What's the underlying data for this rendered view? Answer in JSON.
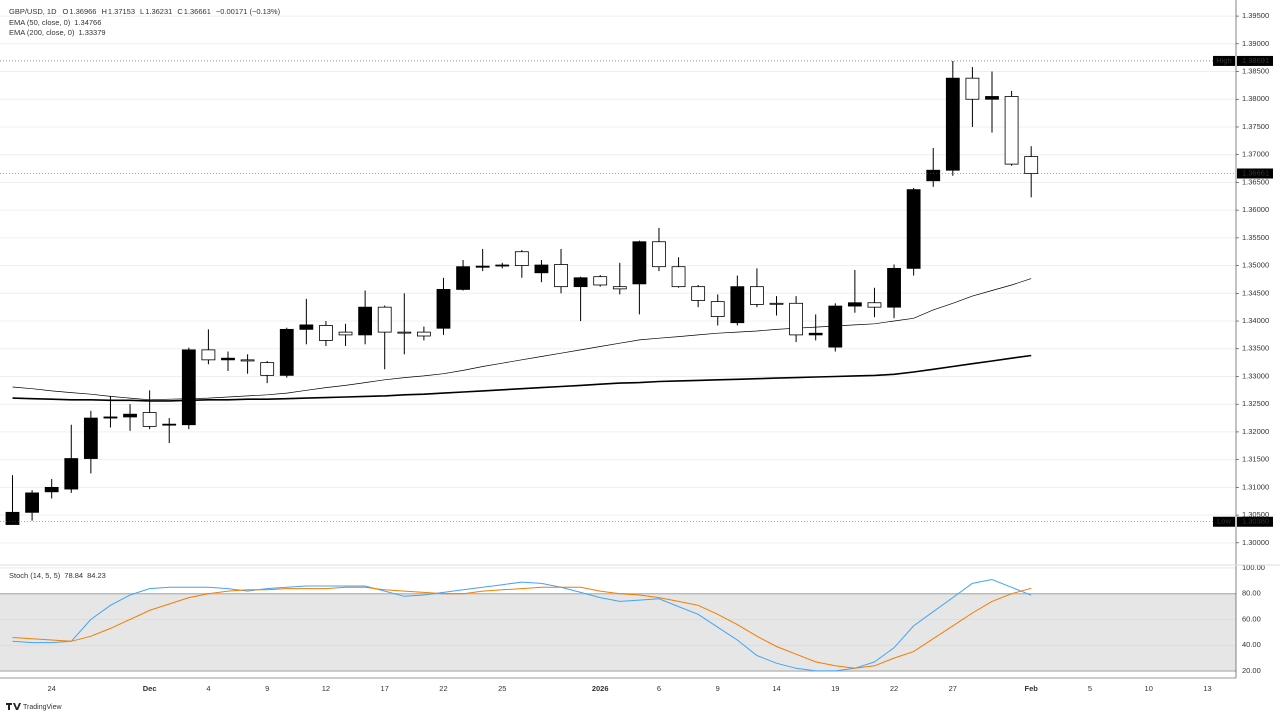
{
  "chart_data": {
    "type": "candlestick",
    "header": {
      "symbol": "GBP/USD, 1D",
      "o": "O",
      "h": "H",
      "l": "L",
      "c": "C",
      "change": "−0.00171 (−0.13%)"
    },
    "categories": [
      null,
      null,
      "24",
      null,
      null,
      null,
      null,
      "Dec",
      null,
      null,
      "4",
      null,
      null,
      "9",
      null,
      null,
      "12",
      null,
      null,
      "17",
      null,
      null,
      "22",
      null,
      null,
      "25",
      null,
      null,
      null,
      null,
      "2026",
      null,
      null,
      "6",
      null,
      null,
      "9",
      null,
      null,
      "14",
      null,
      null,
      "19",
      null,
      null,
      "22",
      null,
      null,
      "27",
      null,
      null,
      null,
      "Feb",
      null,
      null,
      "5",
      null,
      null,
      "10",
      null,
      null,
      "13"
    ],
    "ohlc": {
      "up_color": "#000000",
      "down_color": "#ffffff",
      "wick_color": "#000000",
      "open": [
        1.3033,
        1.3055,
        1.3092,
        1.3097,
        1.3152,
        1.3225,
        1.3227,
        1.3235,
        1.3213,
        1.3213,
        1.3348,
        1.333,
        1.333,
        1.3325,
        1.3302,
        1.3385,
        1.3392,
        1.338,
        1.3375,
        1.3425,
        1.338,
        1.338,
        1.3387,
        1.3457,
        1.3497,
        1.35,
        1.3525,
        1.3487,
        1.3502,
        1.3462,
        1.348,
        1.3462,
        1.3467,
        1.3543,
        1.3498,
        1.3462,
        1.3435,
        1.3397,
        1.3462,
        1.3432,
        1.3432,
        1.3375,
        1.3353,
        1.3427,
        1.3433,
        1.3425,
        1.3495,
        1.3653,
        1.3672,
        1.3838,
        1.38,
        1.3805,
        1.36966,
        null,
        null,
        null,
        null,
        null,
        null,
        null,
        null,
        null
      ],
      "high": [
        1.3122,
        1.3095,
        1.3115,
        1.3213,
        1.3238,
        1.3265,
        1.325,
        1.3275,
        1.3225,
        1.3352,
        1.3385,
        1.3345,
        1.334,
        1.3328,
        1.3388,
        1.344,
        1.34,
        1.3395,
        1.3455,
        1.3428,
        1.345,
        1.339,
        1.3478,
        1.351,
        1.353,
        1.3505,
        1.3528,
        1.351,
        1.353,
        1.348,
        1.3483,
        1.3505,
        1.3545,
        1.3568,
        1.3515,
        1.3465,
        1.3448,
        1.3482,
        1.3495,
        1.3445,
        1.3445,
        1.3412,
        1.3432,
        1.3492,
        1.346,
        1.3502,
        1.364,
        1.3712,
        1.38691,
        1.3858,
        1.385,
        1.3815,
        1.37153,
        null,
        null,
        null,
        null,
        null,
        null,
        null,
        null,
        null
      ],
      "low": [
        1.3038,
        1.304,
        1.308,
        1.309,
        1.3125,
        1.3208,
        1.3202,
        1.3205,
        1.318,
        1.3205,
        1.3322,
        1.331,
        1.3305,
        1.3288,
        1.3298,
        1.3358,
        1.3355,
        1.3355,
        1.3358,
        1.3313,
        1.334,
        1.3365,
        1.3375,
        1.3455,
        1.349,
        1.3495,
        1.3478,
        1.347,
        1.345,
        1.34,
        1.3462,
        1.3448,
        1.3412,
        1.349,
        1.346,
        1.3425,
        1.3392,
        1.3392,
        1.3425,
        1.341,
        1.3362,
        1.3365,
        1.3345,
        1.3415,
        1.3407,
        1.3405,
        1.3482,
        1.3642,
        1.3662,
        1.375,
        1.374,
        1.368,
        1.36231,
        null,
        null,
        null,
        null,
        null,
        null,
        null,
        null,
        null
      ],
      "close": [
        1.3055,
        1.309,
        1.31,
        1.3152,
        1.3225,
        1.3227,
        1.3232,
        1.321,
        1.3214,
        1.3348,
        1.333,
        1.3333,
        1.3328,
        1.3302,
        1.3385,
        1.3393,
        1.3365,
        1.3375,
        1.3425,
        1.338,
        1.3379,
        1.3373,
        1.3457,
        1.3498,
        1.3499,
        1.3501,
        1.35,
        1.3501,
        1.3462,
        1.3478,
        1.3465,
        1.3458,
        1.3543,
        1.3498,
        1.3462,
        1.3437,
        1.3408,
        1.3462,
        1.343,
        1.3431,
        1.3375,
        1.3378,
        1.3427,
        1.3433,
        1.3425,
        1.3495,
        1.3637,
        1.3672,
        1.3838,
        1.38,
        1.3805,
        1.3683,
        1.36661,
        null,
        null,
        null,
        null,
        null,
        null,
        null,
        null,
        null
      ]
    },
    "series": [
      {
        "name": "EMA (50, close, 0)",
        "color": "#000000",
        "width": 0.7,
        "values": [
          1.3281,
          1.3278,
          1.3274,
          1.3271,
          1.3268,
          1.3264,
          1.3261,
          1.3258,
          1.3259,
          1.326,
          1.3261,
          1.3263,
          1.3265,
          1.3267,
          1.327,
          1.3275,
          1.328,
          1.3284,
          1.3289,
          1.3294,
          1.3298,
          1.3301,
          1.3305,
          1.3311,
          1.3318,
          1.3324,
          1.333,
          1.3336,
          1.3342,
          1.3348,
          1.3354,
          1.336,
          1.3366,
          1.3369,
          1.3372,
          1.3375,
          1.3378,
          1.338,
          1.3382,
          1.3385,
          1.3387,
          1.3389,
          1.3391,
          1.3393,
          1.3395,
          1.34,
          1.3405,
          1.342,
          1.3432,
          1.3445,
          1.3455,
          1.3465,
          1.34766,
          null,
          null,
          null,
          null,
          null,
          null,
          null,
          null,
          null
        ]
      },
      {
        "name": "EMA (200, close, 0)",
        "color": "#000000",
        "width": 1.6,
        "values": [
          1.3261,
          1.326,
          1.3259,
          1.3258,
          1.3258,
          1.3257,
          1.3257,
          1.3256,
          1.3256,
          1.3257,
          1.3258,
          1.3258,
          1.3259,
          1.3259,
          1.326,
          1.3261,
          1.3262,
          1.3263,
          1.3264,
          1.3265,
          1.3267,
          1.3268,
          1.327,
          1.3272,
          1.3274,
          1.3276,
          1.3278,
          1.328,
          1.3282,
          1.3284,
          1.3286,
          1.3288,
          1.3289,
          1.3291,
          1.3292,
          1.3293,
          1.3294,
          1.3295,
          1.3296,
          1.3297,
          1.3298,
          1.3299,
          1.33,
          1.3301,
          1.3302,
          1.3304,
          1.3308,
          1.3313,
          1.3318,
          1.3323,
          1.3328,
          1.3333,
          1.33379,
          null,
          null,
          null,
          null,
          null,
          null,
          null,
          null,
          null
        ]
      }
    ],
    "ylim": [
      1.296,
      1.3979
    ],
    "yticks": [
      {
        "value": 1.395,
        "label": "1.39500"
      },
      {
        "value": 1.39,
        "label": "1.39000"
      },
      {
        "value": 1.385,
        "label": "1.38500"
      },
      {
        "value": 1.38,
        "label": "1.38000"
      },
      {
        "value": 1.375,
        "label": "1.37500"
      },
      {
        "value": 1.37,
        "label": "1.37000"
      },
      {
        "value": 1.365,
        "label": "1.36500"
      },
      {
        "value": 1.36,
        "label": "1.36000"
      },
      {
        "value": 1.355,
        "label": "1.35500"
      },
      {
        "value": 1.35,
        "label": "1.35000"
      },
      {
        "value": 1.345,
        "label": "1.34500"
      },
      {
        "value": 1.34,
        "label": "1.34000"
      },
      {
        "value": 1.335,
        "label": "1.33500"
      },
      {
        "value": 1.33,
        "label": "1.33000"
      },
      {
        "value": 1.325,
        "label": "1.32500"
      },
      {
        "value": 1.32,
        "label": "1.32000"
      },
      {
        "value": 1.315,
        "label": "1.31500"
      },
      {
        "value": 1.31,
        "label": "1.31000"
      },
      {
        "value": 1.305,
        "label": "1.30500"
      },
      {
        "value": 1.3,
        "label": "1.30000"
      }
    ],
    "grid": true,
    "markers": [
      {
        "label": "High",
        "value": 1.38691
      },
      {
        "label": "Low",
        "value": 1.3038,
        "value_label": "1.30380"
      }
    ],
    "last_price": 1.36661,
    "indicator": {
      "type": "line",
      "title": "Stoch (14, 5, 5)",
      "series": [
        {
          "color": "#42a5f5",
          "values": [
            43,
            42,
            42,
            43,
            60,
            71,
            79,
            84,
            85,
            85,
            85,
            84,
            82,
            84,
            85,
            86,
            86,
            86,
            86,
            82,
            78,
            79,
            81,
            83,
            85,
            87,
            89,
            88,
            85,
            81,
            77,
            74,
            75,
            76,
            70,
            64,
            54,
            44,
            32,
            26,
            22,
            20,
            20,
            22,
            27,
            38,
            55,
            66,
            77,
            88,
            91,
            85,
            78.84,
            null,
            null,
            null,
            null,
            null,
            null,
            null,
            null,
            null
          ]
        },
        {
          "color": "#f57c00",
          "values": [
            46,
            45,
            44,
            43,
            47,
            53,
            60,
            67,
            72,
            77,
            80,
            82,
            83,
            83,
            84,
            84,
            84,
            85,
            85,
            83,
            82,
            81,
            80,
            80,
            82,
            83,
            84,
            85,
            85,
            85,
            82,
            80,
            79,
            77,
            74,
            71,
            64,
            56,
            47,
            39,
            33,
            27,
            24,
            22,
            24,
            30,
            35,
            45,
            55,
            65,
            74,
            80,
            84.23,
            null,
            null,
            null,
            null,
            null,
            null,
            null,
            null,
            null
          ]
        }
      ],
      "ylim": [
        14.5,
        102.3
      ],
      "yticks": [
        {
          "value": 100,
          "label": "100.00"
        },
        {
          "value": 80,
          "label": "80.00"
        },
        {
          "value": 60,
          "label": "60.00"
        },
        {
          "value": 40,
          "label": "40.00"
        },
        {
          "value": 20,
          "label": "20.00"
        }
      ],
      "band": {
        "upper": 80,
        "lower": 20,
        "color": "#e6e6e6"
      }
    },
    "watermark": "TradingView"
  }
}
